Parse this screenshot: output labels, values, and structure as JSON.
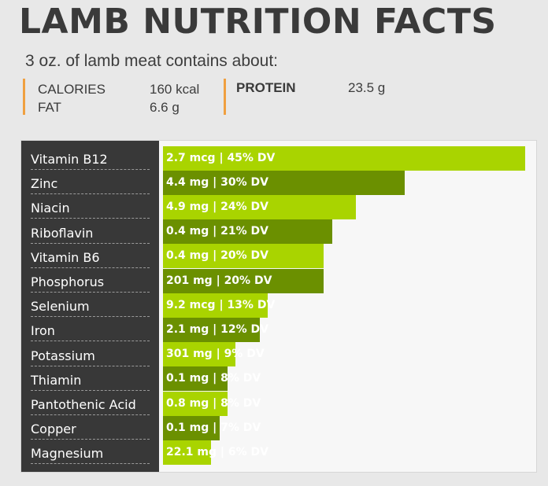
{
  "header": {
    "title": "LAMB NUTRITION FACTS",
    "subtitle": "3 oz. of lamb meat contains about:"
  },
  "stats": [
    {
      "label": "CALORIES",
      "value": "160 kcal"
    },
    {
      "label": "FAT",
      "value": "6.6 g"
    },
    {
      "label": "PROTEIN",
      "value": "23.5 g"
    }
  ],
  "colors": {
    "bar_light": "#a9d400",
    "bar_dark": "#6b9000",
    "accent": "#f0a040",
    "label_panel": "#383838"
  },
  "chart_data": {
    "type": "bar",
    "orientation": "horizontal",
    "title": "",
    "xlabel": "",
    "ylabel": "",
    "xlim": [
      0,
      45
    ],
    "categories": [
      "Vitamin B12",
      "Zinc",
      "Niacin",
      "Riboflavin",
      "Vitamin B6",
      "Phosphorus",
      "Selenium",
      "Iron",
      "Potassium",
      "Thiamin",
      "Pantothenic Acid",
      "Copper",
      "Magnesium"
    ],
    "values": [
      45,
      30,
      24,
      21,
      20,
      20,
      13,
      12,
      9,
      8,
      8,
      7,
      6
    ],
    "data_labels": [
      "2.7 mcg | 45% DV",
      "4.4 mg | 30% DV",
      "4.9 mg | 24% DV",
      "0.4 mg | 21% DV",
      "0.4 mg | 20% DV",
      "201 mg | 20% DV",
      "9.2 mcg | 13% DV",
      "2.1 mg | 12% DV",
      "301 mg | 9% DV",
      "0.1 mg | 8% DV",
      "0.8 mg | 8% DV",
      "0.1 mg | 7% DV",
      "22.1 mg | 6% DV"
    ],
    "grid": false,
    "legend": "none"
  }
}
